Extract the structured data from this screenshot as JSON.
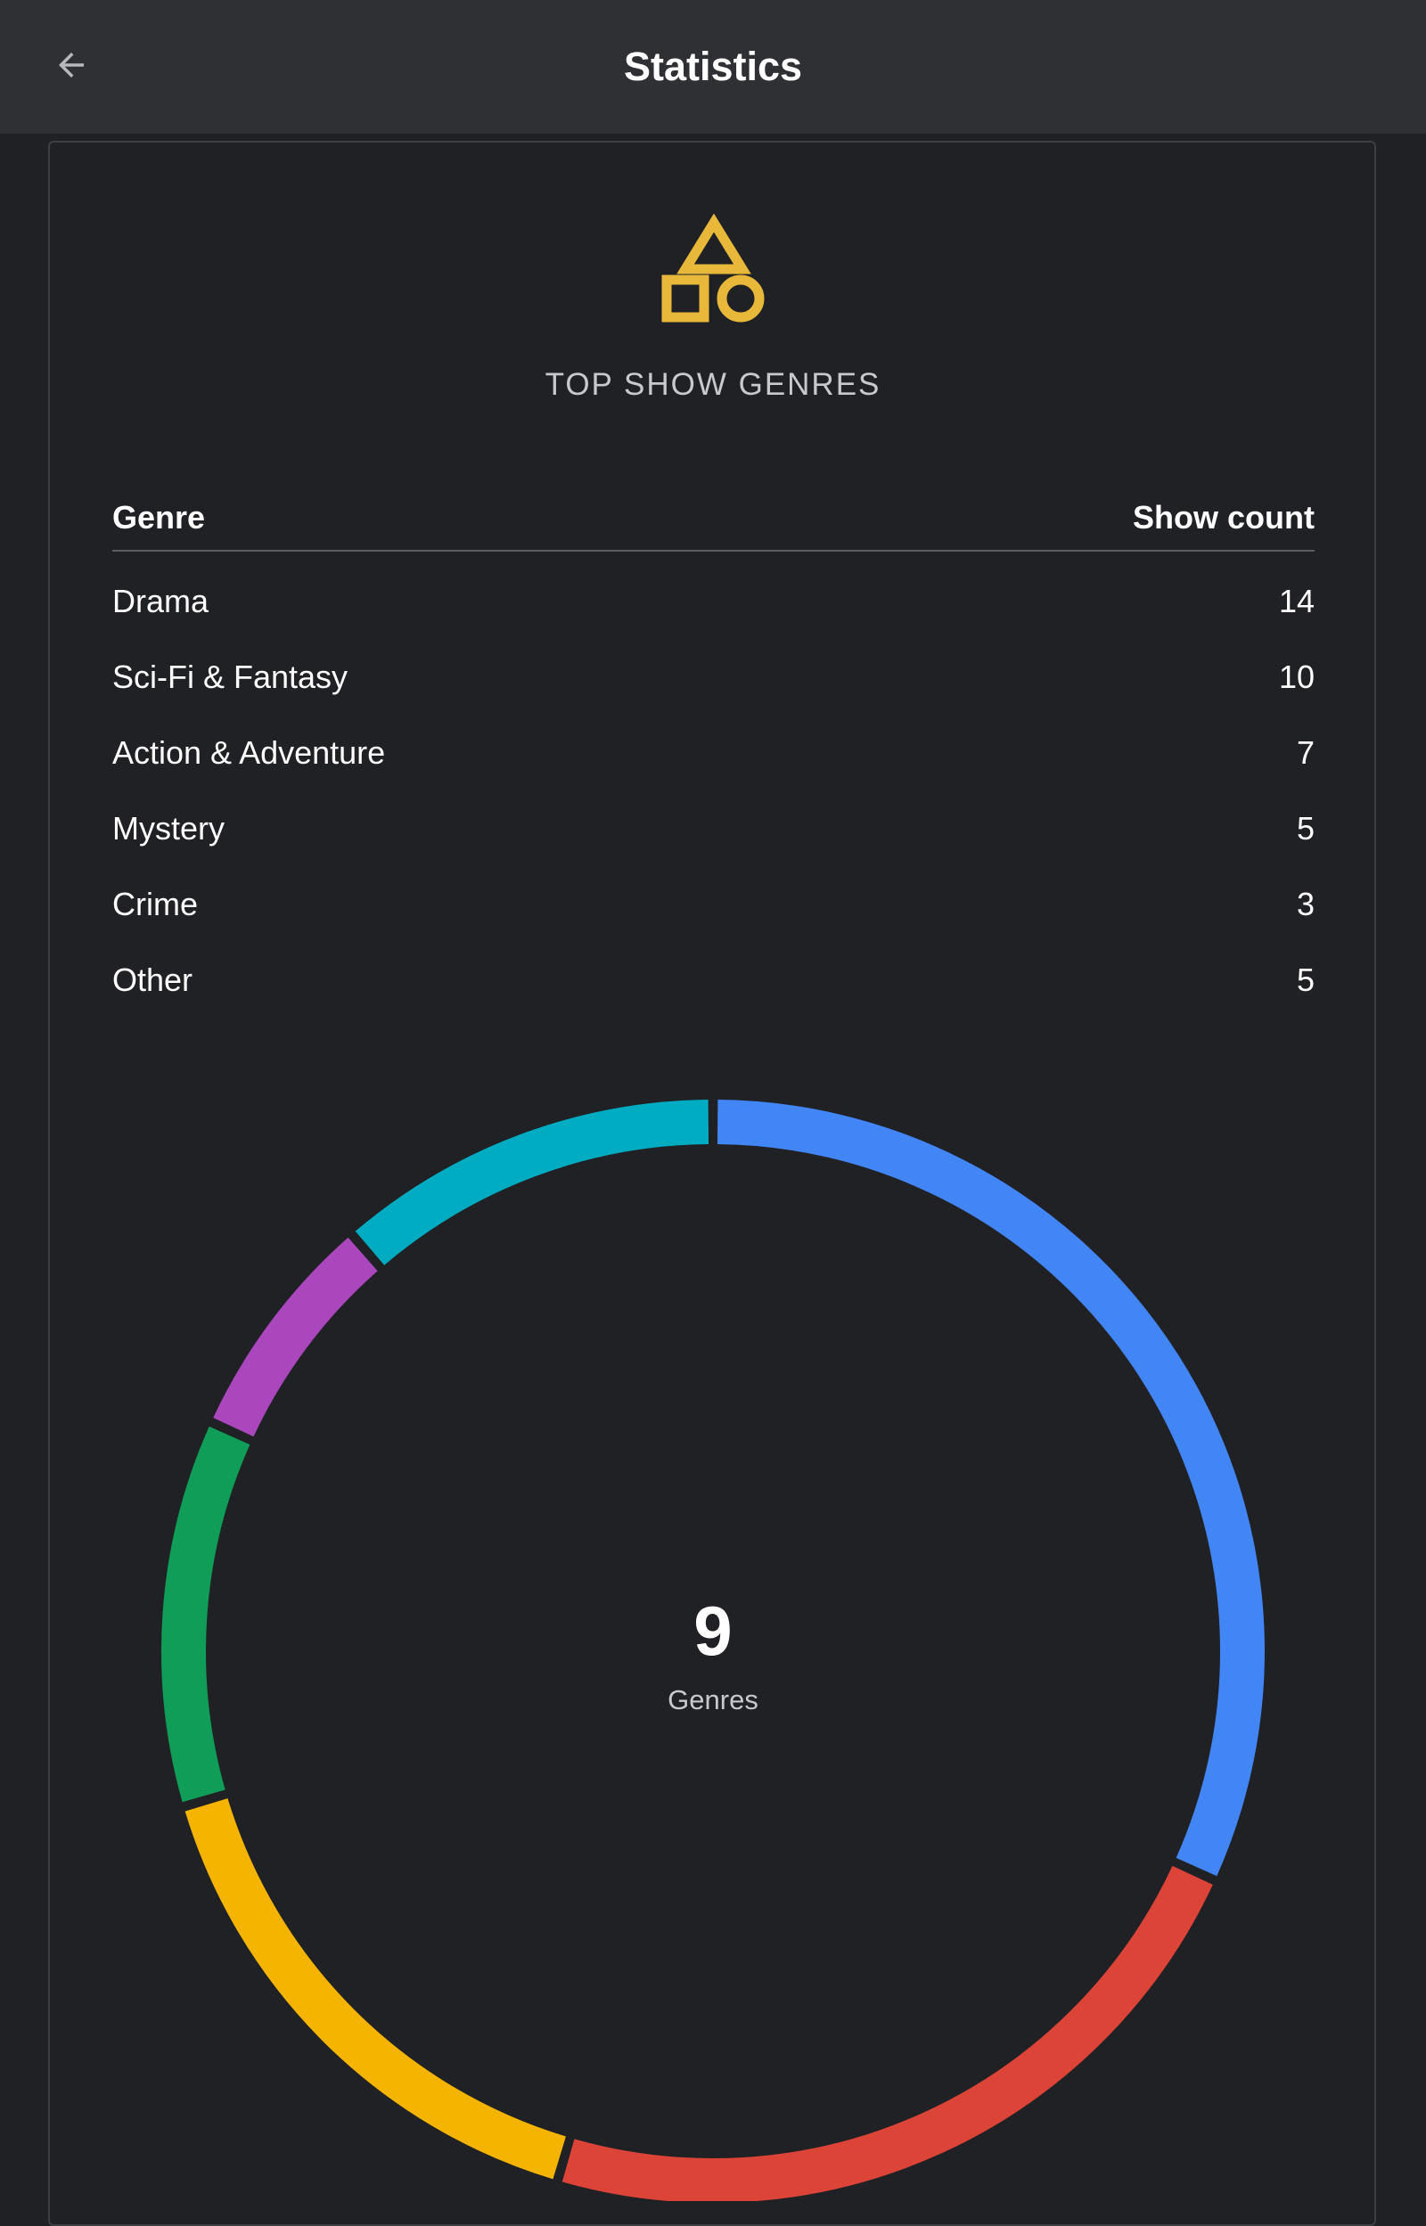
{
  "app_bar": {
    "title": "Statistics",
    "back_icon": "arrow-back-icon"
  },
  "card": {
    "icon": "shapes-icon",
    "icon_color": "#e8b83a",
    "heading": "TOP SHOW GENRES",
    "table": {
      "columns": [
        "Genre",
        "Show count"
      ],
      "rows": [
        {
          "genre": "Drama",
          "count": "14"
        },
        {
          "genre": "Sci-Fi & Fantasy",
          "count": "10"
        },
        {
          "genre": "Action & Adventure",
          "count": "7"
        },
        {
          "genre": "Mystery",
          "count": "5"
        },
        {
          "genre": "Crime",
          "count": "3"
        },
        {
          "genre": "Other",
          "count": "5"
        }
      ]
    }
  },
  "chart_data": {
    "type": "pie",
    "style": "donut",
    "center_value": "9",
    "center_label": "Genres",
    "categories": [
      "Drama",
      "Sci-Fi & Fantasy",
      "Action & Adventure",
      "Mystery",
      "Crime",
      "Other"
    ],
    "values": [
      14,
      10,
      7,
      5,
      3,
      5
    ],
    "colors": [
      "#4285f4",
      "#db4437",
      "#f4b400",
      "#0f9d58",
      "#ab47bc",
      "#00acc1"
    ],
    "legend": "none"
  }
}
